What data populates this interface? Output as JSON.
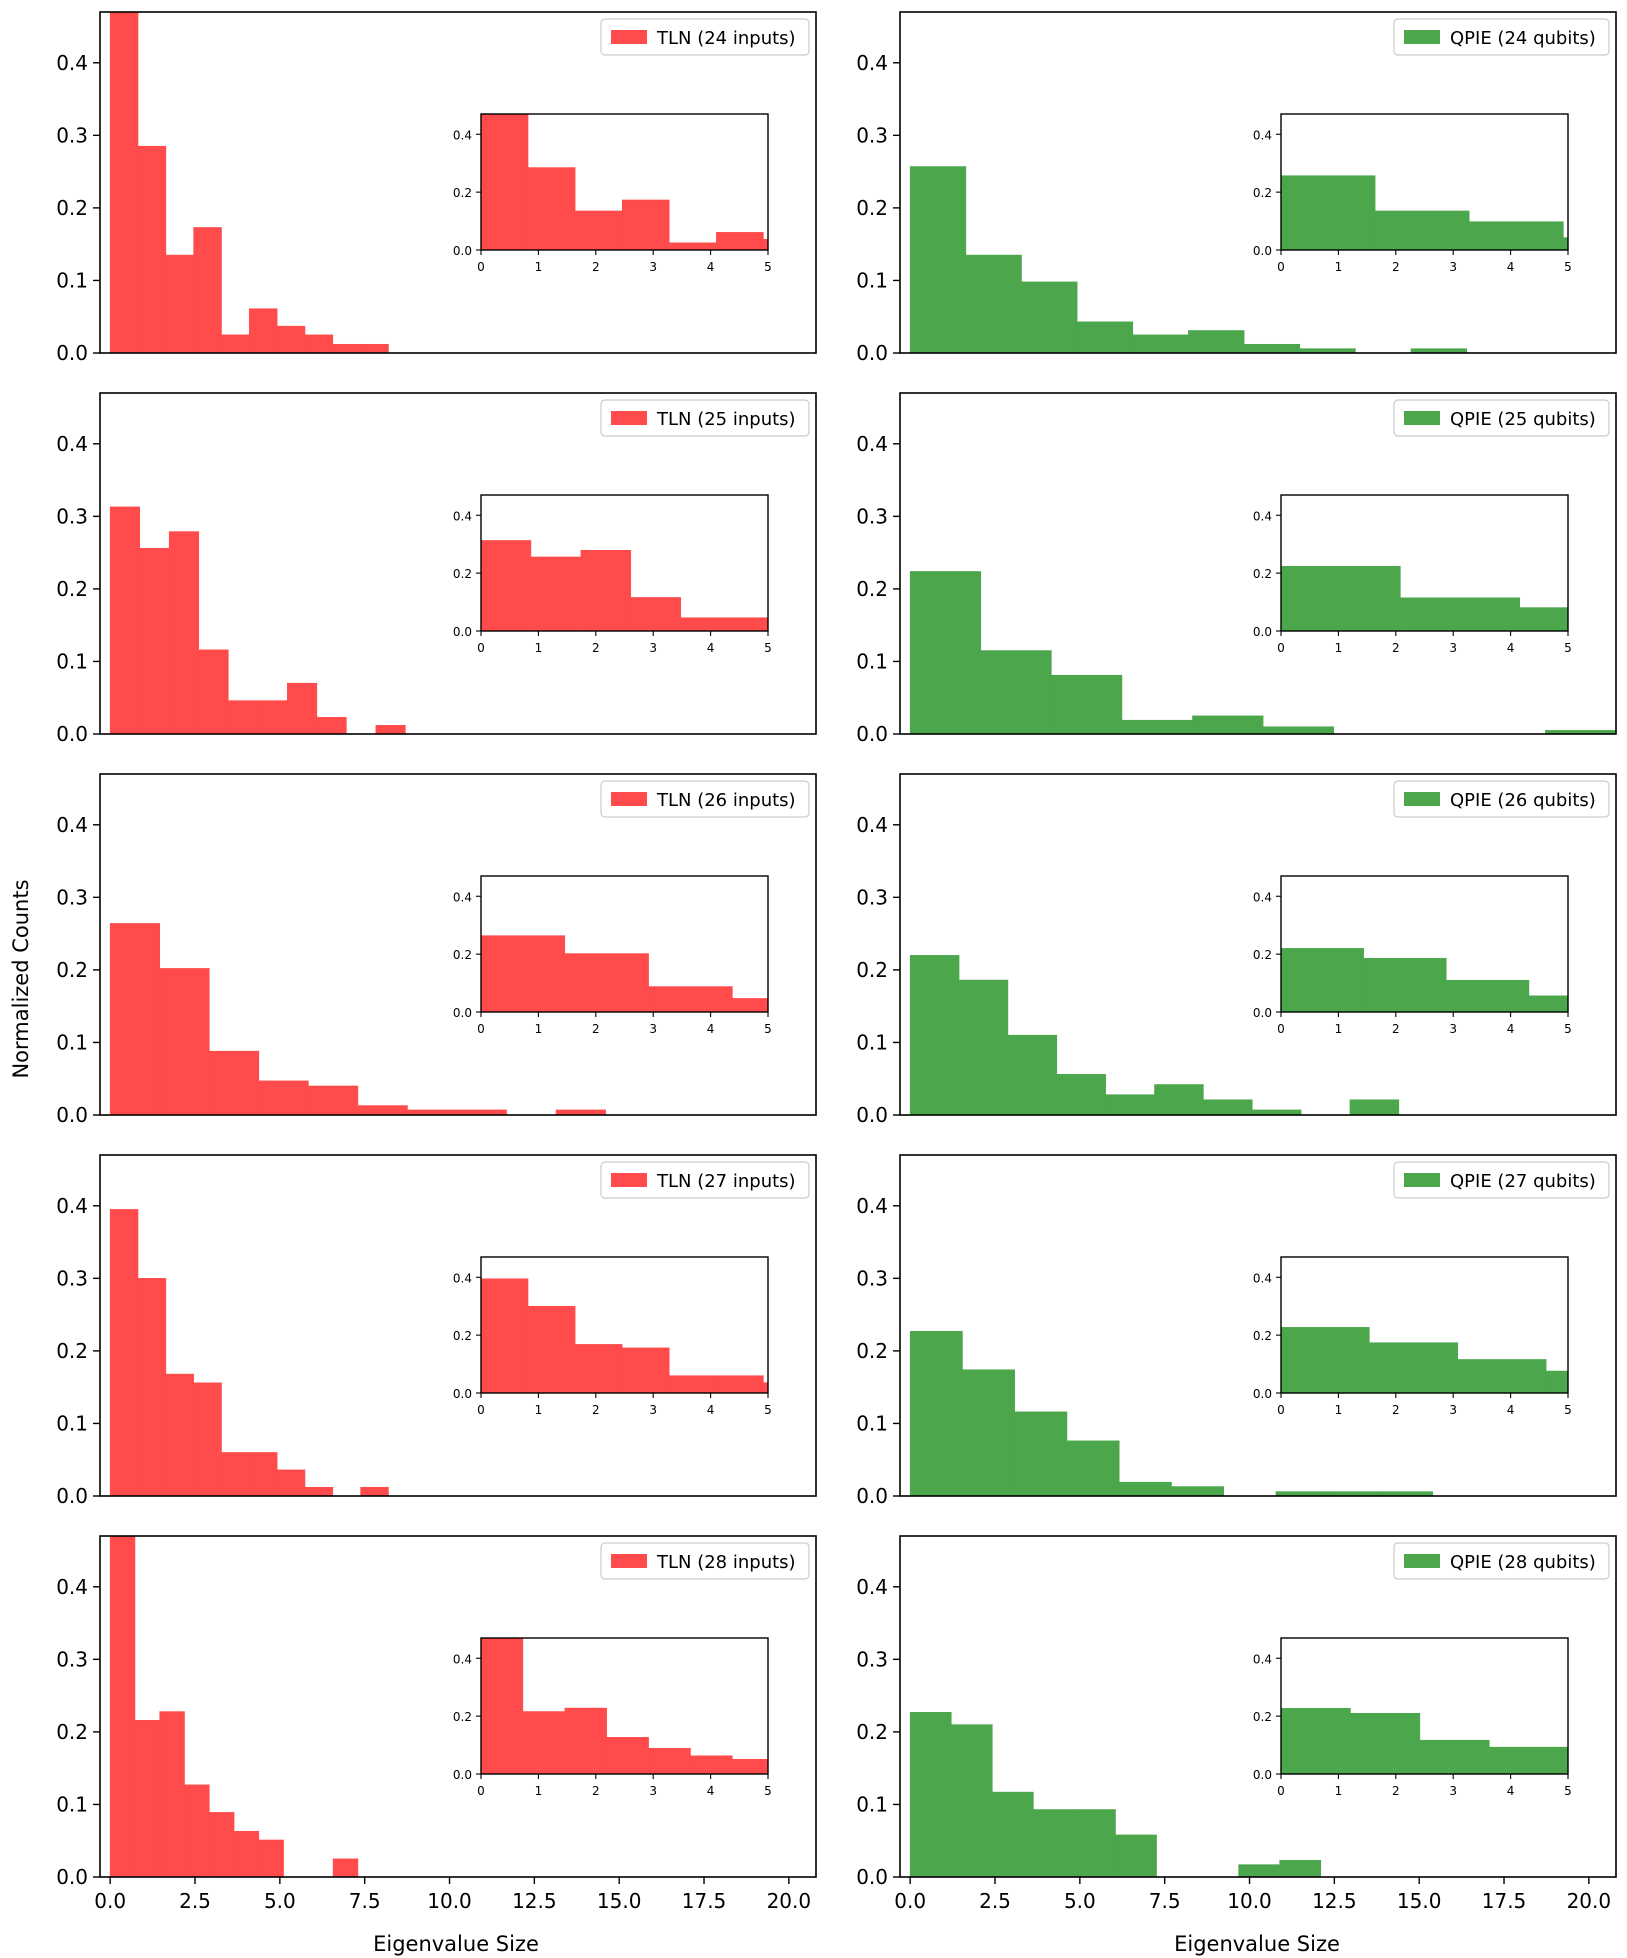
{
  "figure": {
    "ylabel": "Normalized Counts",
    "xlabel": "Eigenvalue Size",
    "colors": {
      "tln": "#ff4b4b",
      "qpie": "#4ca64c",
      "axis": "#000000"
    }
  },
  "chart_data": [
    {
      "id": "tln24",
      "type": "bar",
      "legend": "TLN (24 inputs)",
      "color": "#ff4b4b",
      "xlim": [
        -0.3,
        20.8
      ],
      "ylim": [
        0,
        0.47
      ],
      "bin_width": 0.82,
      "bins": [
        0.0,
        0.82,
        1.64,
        2.46,
        3.28,
        4.1,
        4.92,
        5.74,
        6.56,
        7.38
      ],
      "values": [
        0.47,
        0.285,
        0.135,
        0.173,
        0.025,
        0.061,
        0.037,
        0.025,
        0.012,
        0.012
      ],
      "inset": {
        "bin_width": 0.82,
        "bins": [
          0.0,
          0.82,
          1.64,
          2.46,
          3.28,
          4.1,
          4.92
        ],
        "values": [
          0.47,
          0.285,
          0.135,
          0.173,
          0.025,
          0.061,
          0.037
        ],
        "xlim": [
          0,
          5
        ],
        "ylim": [
          0,
          0.47
        ]
      }
    },
    {
      "id": "qpie24",
      "type": "bar",
      "legend": "QPIE (24 qubits)",
      "color": "#4ca64c",
      "xlim": [
        -0.3,
        20.8
      ],
      "ylim": [
        0,
        0.47
      ],
      "bin_width": 1.64,
      "bins": [
        0.0,
        1.64,
        3.28,
        4.92,
        6.56,
        8.2,
        9.84,
        11.48,
        13.12,
        14.76
      ],
      "values": [
        0.257,
        0.135,
        0.098,
        0.043,
        0.025,
        0.031,
        0.012,
        0.006,
        0.0,
        0.006
      ],
      "inset": {
        "bin_width": 1.64,
        "bins": [
          0.0,
          1.64,
          3.28,
          4.92
        ],
        "values": [
          0.257,
          0.135,
          0.098,
          0.043
        ],
        "xlim": [
          0,
          5
        ],
        "ylim": [
          0,
          0.47
        ]
      }
    },
    {
      "id": "tln25",
      "type": "bar",
      "legend": "TLN (25 inputs)",
      "color": "#ff4b4b",
      "xlim": [
        -0.3,
        20.8
      ],
      "ylim": [
        0,
        0.47
      ],
      "bin_width": 0.87,
      "bins": [
        0.0,
        0.87,
        1.74,
        2.61,
        3.48,
        4.35,
        5.22,
        6.09,
        6.96,
        7.83
      ],
      "values": [
        0.313,
        0.256,
        0.279,
        0.116,
        0.046,
        0.046,
        0.07,
        0.023,
        0.0,
        0.012
      ],
      "inset": {
        "bin_width": 0.87,
        "bins": [
          0.0,
          0.87,
          1.74,
          2.61,
          3.48,
          4.35
        ],
        "values": [
          0.313,
          0.256,
          0.279,
          0.116,
          0.046,
          0.046
        ],
        "xlim": [
          0,
          5
        ],
        "ylim": [
          0,
          0.47
        ]
      }
    },
    {
      "id": "qpie25",
      "type": "bar",
      "legend": "QPIE (25 qubits)",
      "color": "#4ca64c",
      "xlim": [
        -0.3,
        20.8
      ],
      "ylim": [
        0,
        0.47
      ],
      "bin_width": 2.08,
      "bins": [
        0.0,
        2.08,
        4.16,
        6.24,
        8.32,
        10.4,
        12.48,
        14.56,
        16.64,
        18.72
      ],
      "values": [
        0.224,
        0.115,
        0.081,
        0.019,
        0.025,
        0.01,
        0.0,
        0.0,
        0.0,
        0.005
      ],
      "inset": {
        "bin_width": 2.08,
        "bins": [
          0.0,
          2.08,
          4.16
        ],
        "values": [
          0.224,
          0.115,
          0.081
        ],
        "xlim": [
          0,
          5
        ],
        "ylim": [
          0,
          0.47
        ]
      }
    },
    {
      "id": "tln26",
      "type": "bar",
      "legend": "TLN (26 inputs)",
      "color": "#ff4b4b",
      "xlim": [
        -0.3,
        20.8
      ],
      "ylim": [
        0,
        0.47
      ],
      "bin_width": 1.46,
      "bins": [
        0.0,
        1.46,
        2.92,
        4.38,
        5.84,
        7.3,
        8.76,
        10.22,
        11.68,
        13.14
      ],
      "values": [
        0.264,
        0.202,
        0.088,
        0.047,
        0.04,
        0.013,
        0.007,
        0.007,
        0.0,
        0.007
      ],
      "inset": {
        "bin_width": 1.46,
        "bins": [
          0.0,
          1.46,
          2.92,
          4.38
        ],
        "values": [
          0.264,
          0.202,
          0.088,
          0.047
        ],
        "xlim": [
          0,
          5
        ],
        "ylim": [
          0,
          0.47
        ]
      }
    },
    {
      "id": "qpie26",
      "type": "bar",
      "legend": "QPIE (26 qubits)",
      "color": "#4ca64c",
      "xlim": [
        -0.3,
        20.8
      ],
      "ylim": [
        0,
        0.47
      ],
      "bin_width": 1.44,
      "bins": [
        0.0,
        1.44,
        2.88,
        4.32,
        5.76,
        7.2,
        8.64,
        10.08,
        11.52,
        12.96
      ],
      "values": [
        0.22,
        0.186,
        0.11,
        0.056,
        0.028,
        0.042,
        0.021,
        0.007,
        0.0,
        0.021
      ],
      "inset": {
        "bin_width": 1.44,
        "bins": [
          0.0,
          1.44,
          2.88,
          4.32
        ],
        "values": [
          0.22,
          0.186,
          0.11,
          0.056
        ],
        "xlim": [
          0,
          5
        ],
        "ylim": [
          0,
          0.47
        ]
      }
    },
    {
      "id": "tln27",
      "type": "bar",
      "legend": "TLN (27 inputs)",
      "color": "#ff4b4b",
      "xlim": [
        -0.3,
        20.8
      ],
      "ylim": [
        0,
        0.47
      ],
      "bin_width": 0.82,
      "bins": [
        0.0,
        0.82,
        1.64,
        2.46,
        3.28,
        4.1,
        4.92,
        5.74,
        6.56,
        7.38
      ],
      "values": [
        0.395,
        0.3,
        0.168,
        0.156,
        0.06,
        0.06,
        0.036,
        0.012,
        0.0,
        0.012
      ],
      "inset": {
        "bin_width": 0.82,
        "bins": [
          0.0,
          0.82,
          1.64,
          2.46,
          3.28,
          4.1,
          4.92
        ],
        "values": [
          0.395,
          0.3,
          0.168,
          0.156,
          0.06,
          0.06,
          0.036
        ],
        "xlim": [
          0,
          5
        ],
        "ylim": [
          0,
          0.47
        ]
      }
    },
    {
      "id": "qpie27",
      "type": "bar",
      "legend": "QPIE (27 qubits)",
      "color": "#4ca64c",
      "xlim": [
        -0.3,
        20.8
      ],
      "ylim": [
        0,
        0.47
      ],
      "bin_width": 1.54,
      "bins": [
        0.0,
        1.54,
        3.08,
        4.62,
        6.16,
        7.7,
        9.24,
        10.78,
        12.32,
        13.86
      ],
      "values": [
        0.227,
        0.174,
        0.116,
        0.076,
        0.019,
        0.013,
        0.0,
        0.006,
        0.006,
        0.006
      ],
      "inset": {
        "bin_width": 1.54,
        "bins": [
          0.0,
          1.54,
          3.08,
          4.62
        ],
        "values": [
          0.227,
          0.174,
          0.116,
          0.076
        ],
        "xlim": [
          0,
          5
        ],
        "ylim": [
          0,
          0.47
        ]
      }
    },
    {
      "id": "tln28",
      "type": "bar",
      "legend": "TLN (28 inputs)",
      "color": "#ff4b4b",
      "xlim": [
        -0.3,
        20.8
      ],
      "ylim": [
        0,
        0.47
      ],
      "bin_width": 0.73,
      "bins": [
        0.0,
        0.73,
        1.46,
        2.19,
        2.92,
        3.65,
        4.38,
        5.11,
        5.84,
        6.57,
        7.3
      ],
      "values": [
        0.47,
        0.216,
        0.228,
        0.127,
        0.089,
        0.063,
        0.051,
        0.0,
        0.0,
        0.025,
        0.0
      ],
      "inset": {
        "bin_width": 0.73,
        "bins": [
          0.0,
          0.73,
          1.46,
          2.19,
          2.92,
          3.65,
          4.38
        ],
        "values": [
          0.47,
          0.216,
          0.228,
          0.127,
          0.089,
          0.063,
          0.051
        ],
        "xlim": [
          0,
          5
        ],
        "ylim": [
          0,
          0.47
        ]
      }
    },
    {
      "id": "qpie28",
      "type": "bar",
      "legend": "QPIE (28 qubits)",
      "color": "#4ca64c",
      "xlim": [
        -0.3,
        20.8
      ],
      "ylim": [
        0,
        0.47
      ],
      "bin_width": 1.21,
      "bins": [
        0.0,
        1.21,
        2.42,
        3.63,
        4.84,
        6.05,
        7.26,
        8.47,
        9.68,
        10.89
      ],
      "values": [
        0.227,
        0.21,
        0.117,
        0.093,
        0.093,
        0.058,
        0.0,
        0.0,
        0.017,
        0.023
      ],
      "inset": {
        "bin_width": 1.21,
        "bins": [
          0.0,
          1.21,
          2.42,
          3.63,
          4.84
        ],
        "values": [
          0.227,
          0.21,
          0.117,
          0.093,
          0.093
        ],
        "xlim": [
          0,
          5
        ],
        "ylim": [
          0,
          0.47
        ]
      }
    }
  ],
  "axes": {
    "y_ticks": [
      "0.0",
      "0.1",
      "0.2",
      "0.3",
      "0.4"
    ],
    "x_ticks": [
      "0.0",
      "2.5",
      "5.0",
      "7.5",
      "10.0",
      "12.5",
      "15.0",
      "17.5",
      "20.0"
    ],
    "inset_y_ticks": [
      "0.0",
      "0.2",
      "0.4"
    ],
    "inset_x_ticks": [
      "0",
      "1",
      "2",
      "3",
      "4",
      "5"
    ]
  }
}
